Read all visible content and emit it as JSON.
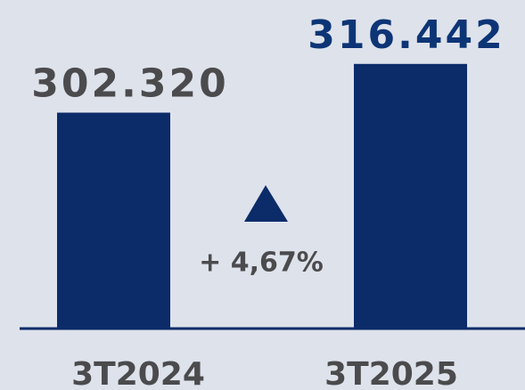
{
  "chart_data": {
    "type": "bar",
    "categories": [
      "3T2024",
      "3T2025"
    ],
    "values": [
      302320,
      316442
    ],
    "value_labels": [
      "302.320",
      "316.442"
    ],
    "color": "#0b2b69",
    "label_colors": [
      "#4b4b4d",
      "#0d3576"
    ],
    "ylim": [
      240000,
      320000
    ],
    "annotation": "+ 4,67%"
  }
}
